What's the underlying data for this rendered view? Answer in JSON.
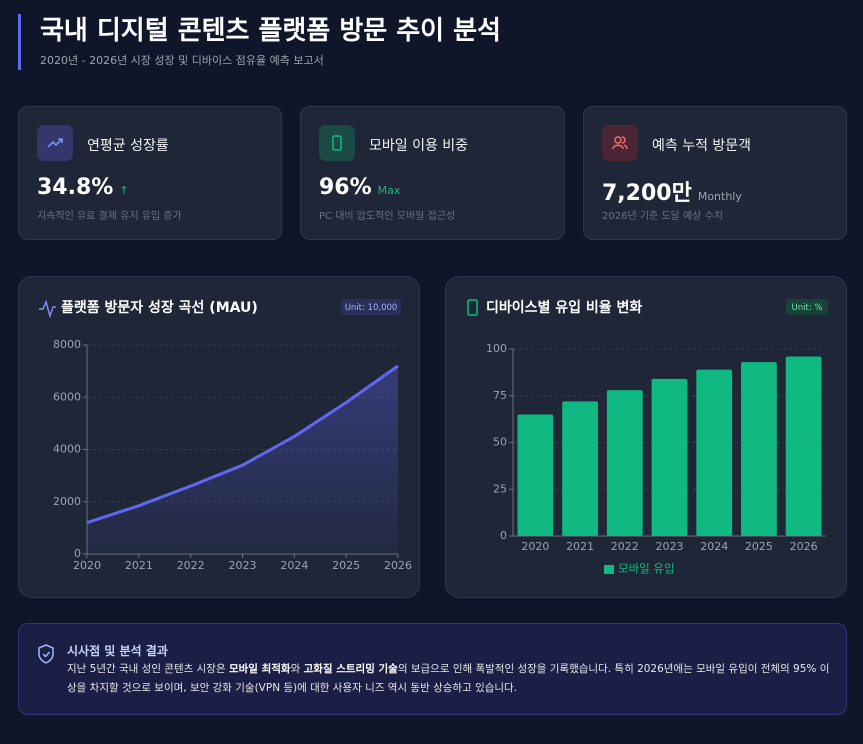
{
  "header": {
    "title": "국내 디지털 콘텐츠 플랫폼 방문 추이 분석",
    "subtitle": "2020년 - 2026년 시장 성장 및 디바이스 점유율 예측 보고서"
  },
  "cards": [
    {
      "label": "연평균 성장률",
      "value": "34.8%",
      "suffix": "↑",
      "desc": "지속적인 유료 결제 유저 유입 증가"
    },
    {
      "label": "모바일 이용 비중",
      "value": "96%",
      "suffix": "Max",
      "desc": "PC 대비 압도적인 모바일 접근성"
    },
    {
      "label": "예측 누적 방문객",
      "value": "7,200만",
      "suffix": "Monthly",
      "desc": "2026년 기준 도달 예상 수치"
    }
  ],
  "chart_data": [
    {
      "type": "line",
      "title": "플랫폼 방문자 성장 곡선 (MAU)",
      "unit": "Unit: 10,000",
      "color": "#6366f1",
      "x": [
        2020,
        2021,
        2022,
        2023,
        2024,
        2025,
        2026
      ],
      "values": [
        1200,
        1850,
        2600,
        3400,
        4500,
        5800,
        7200
      ],
      "xlim": [
        2020,
        2026
      ],
      "xticks": [
        2020,
        2021,
        2022,
        2023,
        2024,
        2025,
        2026
      ],
      "ylim": [
        0,
        8000
      ],
      "yticks": [
        0,
        2000,
        4000,
        6000,
        8000
      ],
      "grid": true
    },
    {
      "type": "bar",
      "title": "디바이스별 유입 비율 변화",
      "unit": "Unit: %",
      "categories": [
        "2020",
        "2021",
        "2022",
        "2023",
        "2024",
        "2025",
        "2026"
      ],
      "series": [
        {
          "name": "모바일 유입",
          "color": "#10b981",
          "values": [
            65,
            72,
            78,
            84,
            89,
            93,
            96
          ]
        }
      ],
      "ylim": [
        0,
        100
      ],
      "yticks": [
        0,
        25,
        50,
        75,
        100
      ],
      "grid": true
    }
  ],
  "insight": {
    "title": "시사점 및 분석 결과",
    "parts": [
      "지난 5년간 국내 성인 콘텐츠 시장은 ",
      "모바일 최적화",
      "와 ",
      "고화질 스트리밍 기술",
      "의 보급으로 인해 폭발적인 성장을 기록했습니다. 특히 2026년에는 모바일 유입이 전체의 95% 이상을 차지할 것으로 보이며, 보안 강화 기술(VPN 등)에 대한 사용자 니즈 역시 동반 상승하고 있습니다."
    ]
  }
}
